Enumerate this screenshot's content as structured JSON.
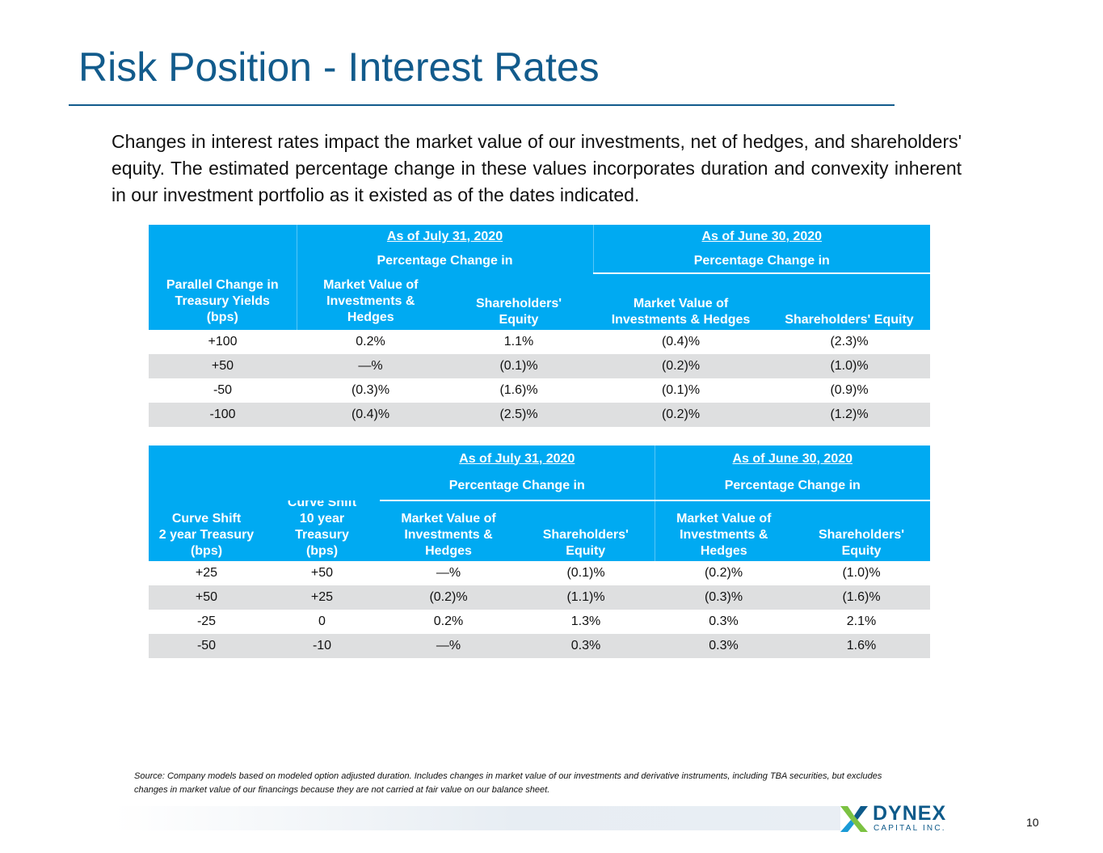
{
  "title": "Risk Position - Interest Rates",
  "intro": "Changes in interest rates impact the market value of our investments, net of hedges, and shareholders' equity. The estimated percentage change in these values incorporates duration and convexity inherent in our investment portfolio as it existed as of the dates indicated.",
  "table1": {
    "date_a": "As of July 31, 2020",
    "date_b": "As of June 30, 2020",
    "pct_a": "Percentage Change in",
    "pct_b": "Percentage Change in",
    "col_shift_line1": "Parallel Change in",
    "col_shift_line2": "Treasury Yields",
    "col_shift_line3": "(bps)",
    "col_mv_a_line1": "Market Value of",
    "col_mv_a_line2": "Investments &",
    "col_mv_a_line3": "Hedges",
    "col_eq_a_line1": "Shareholders'",
    "col_eq_a_line2": "Equity",
    "col_mv_b_line1": "Market Value of",
    "col_mv_b_line2": "Investments & Hedges",
    "col_eq_b": "Shareholders' Equity",
    "rows": [
      {
        "shift": "+100",
        "mv_a": "0.2%",
        "eq_a": "1.1%",
        "mv_b": "(0.4)%",
        "eq_b": "(2.3)%"
      },
      {
        "shift": "+50",
        "mv_a": "—%",
        "eq_a": "(0.1)%",
        "mv_b": "(0.2)%",
        "eq_b": "(1.0)%"
      },
      {
        "shift": "-50",
        "mv_a": "(0.3)%",
        "eq_a": "(1.6)%",
        "mv_b": "(0.1)%",
        "eq_b": "(0.9)%"
      },
      {
        "shift": "-100",
        "mv_a": "(0.4)%",
        "eq_a": "(2.5)%",
        "mv_b": "(0.2)%",
        "eq_b": "(1.2)%"
      }
    ]
  },
  "table2": {
    "date_a": "As of July 31, 2020",
    "date_b": "As of June 30, 2020",
    "pct_a": "Percentage Change in",
    "pct_b": "Percentage Change in",
    "col_2y_line1": "Curve Shift",
    "col_2y_line2": "2 year Treasury",
    "col_2y_line3": "(bps)",
    "col_10y_line1": "Curve Shift",
    "col_10y_line2": "10 year",
    "col_10y_line3": "Treasury",
    "col_10y_line4": "(bps)",
    "col_mv_line1": "Market Value of",
    "col_mv_line2": "Investments &",
    "col_mv_line3": "Hedges",
    "col_eq_line1": "Shareholders'",
    "col_eq_line2": "Equity",
    "rows": [
      {
        "y2": "+25",
        "y10": "+50",
        "mv_a": "—%",
        "eq_a": "(0.1)%",
        "mv_b": "(0.2)%",
        "eq_b": "(1.0)%"
      },
      {
        "y2": "+50",
        "y10": "+25",
        "mv_a": "(0.2)%",
        "eq_a": "(1.1)%",
        "mv_b": "(0.3)%",
        "eq_b": "(1.6)%"
      },
      {
        "y2": "-25",
        "y10": "0",
        "mv_a": "0.2%",
        "eq_a": "1.3%",
        "mv_b": "0.3%",
        "eq_b": "2.1%"
      },
      {
        "y2": "-50",
        "y10": "-10",
        "mv_a": "—%",
        "eq_a": "0.3%",
        "mv_b": "0.3%",
        "eq_b": "1.6%"
      }
    ]
  },
  "source_note": "Source: Company models based on modeled option adjusted duration. Includes changes in market value of our investments and derivative instruments, including TBA securities, but excludes changes in market value of our financings because they are not carried at fair value on our balance sheet.",
  "logo": {
    "name": "DYNEX",
    "sub": "CAPITAL INC.",
    "icon": "dynex-x-logo-icon"
  },
  "page_number": "10",
  "colors": {
    "title": "#125b8c",
    "header_bg": "#00aaf2",
    "alt_row": "#dedfe0",
    "logo": "#0e5a8a"
  }
}
